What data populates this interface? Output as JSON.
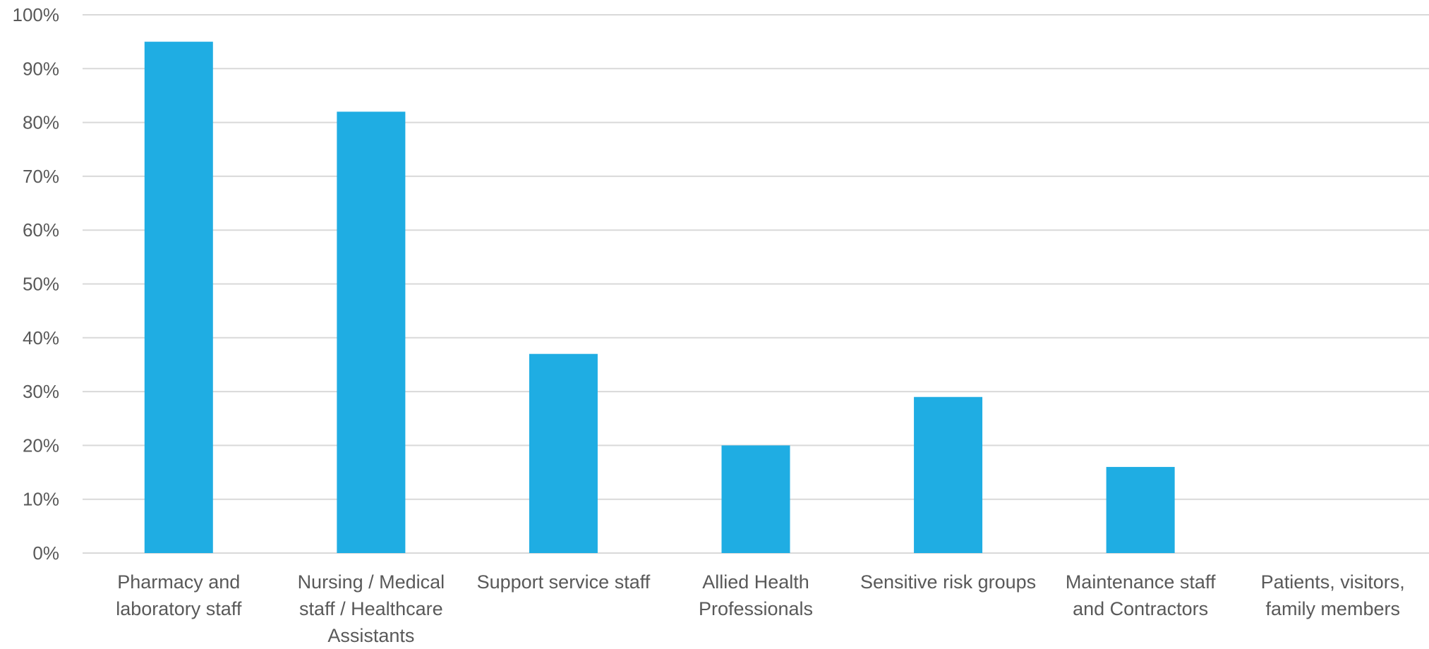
{
  "chart_data": {
    "type": "bar",
    "categories": [
      [
        "Pharmacy and",
        "laboratory staff"
      ],
      [
        "Nursing / Medical",
        "staff / Healthcare",
        "Assistants"
      ],
      [
        "Support service staff"
      ],
      [
        "Allied Health",
        "Professionals"
      ],
      [
        "Sensitive risk groups"
      ],
      [
        "Maintenance staff",
        "and Contractors"
      ],
      [
        "Patients, visitors,",
        "family members"
      ]
    ],
    "values": [
      95,
      82,
      37,
      20,
      29,
      16,
      0
    ],
    "ylim": [
      0,
      100
    ],
    "yticks": [
      0,
      10,
      20,
      30,
      40,
      50,
      60,
      70,
      80,
      90,
      100
    ],
    "ytick_labels": [
      "0%",
      "10%",
      "20%",
      "30%",
      "40%",
      "50%",
      "60%",
      "70%",
      "80%",
      "90%",
      "100%"
    ],
    "title": "",
    "xlabel": "",
    "ylabel": "",
    "grid": true,
    "legend": "none",
    "colors": {
      "bar": "#1FADE3",
      "grid": "#D9D9D9",
      "text": "#595959"
    }
  }
}
